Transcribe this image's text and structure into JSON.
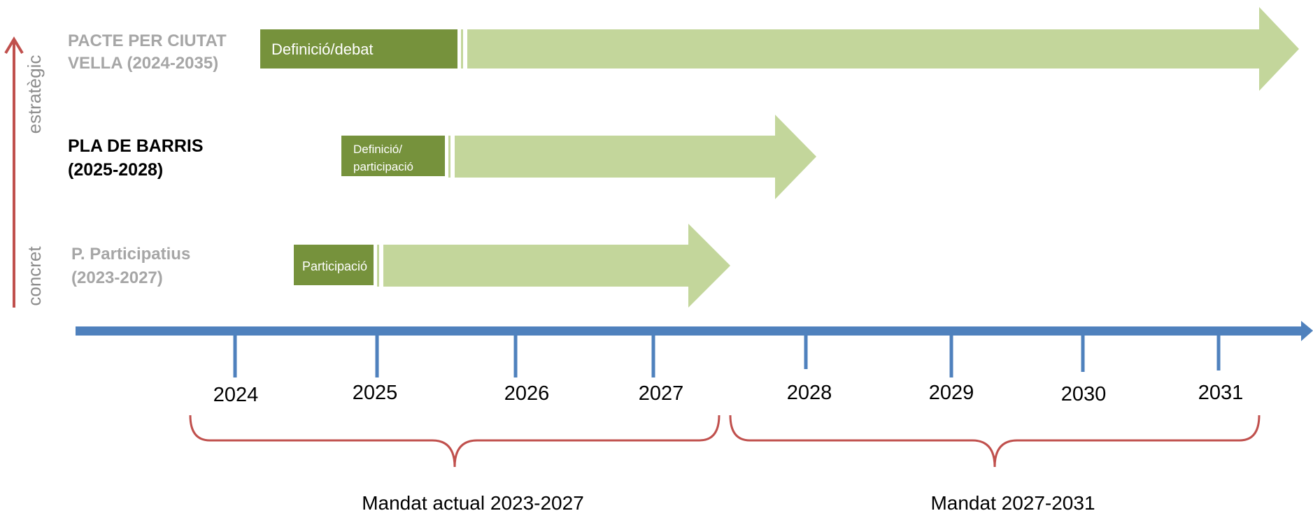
{
  "axis_left": {
    "top_label": "estratègic",
    "bottom_label": "concret"
  },
  "rows": [
    {
      "title_lines": [
        "PACTE PER CIUTAT",
        "VELLA (2024-2035)"
      ],
      "title_color": "#a6a6a6",
      "phase_lines": [
        "Definició/debat"
      ]
    },
    {
      "title_lines": [
        "PLA DE BARRIS",
        "(2025-2028)"
      ],
      "title_color": "#000000",
      "phase_lines": [
        "Definició/",
        "participació"
      ]
    },
    {
      "title_lines": [
        "P. Participatius",
        "(2023-2027)"
      ],
      "title_color": "#a6a6a6",
      "phase_lines": [
        "Participació"
      ]
    }
  ],
  "years": [
    "2024",
    "2025",
    "2026",
    "2027",
    "2028",
    "2029",
    "2030",
    "2031"
  ],
  "mandates": [
    {
      "label": "Mandat actual 2023-2027"
    },
    {
      "label": "Mandat 2027-2031"
    }
  ],
  "colors": {
    "phase_dark_green": "#76923c",
    "arrow_light_green": "#c3d69b",
    "timeline_blue": "#4f81bd",
    "bracket_red": "#c0504d",
    "axis_arrow_red": "#c0504d",
    "axis_label_gray": "#8c8c8c",
    "year_text": "#000000"
  }
}
